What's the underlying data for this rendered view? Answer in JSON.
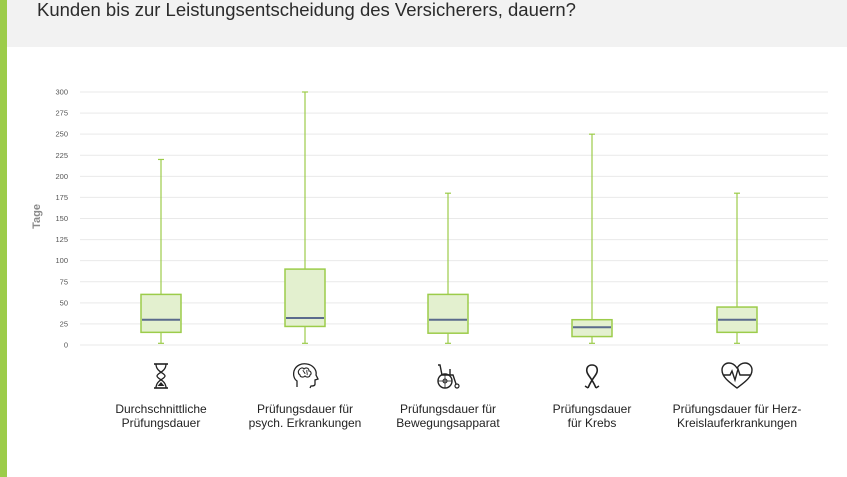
{
  "header": {
    "title": "Kunden bis zur Leistungsentscheidung des Versicherers, dauern?"
  },
  "colors": {
    "accent": "#9ccc4a",
    "box_fill": "#e3f0cf",
    "box_stroke": "#9ccc4a",
    "median": "#5b6b8c",
    "header_bg": "#f2f2f2"
  },
  "chart_data": {
    "type": "boxplot",
    "ylabel": "Tage",
    "ylim": [
      0,
      300
    ],
    "yticks": [
      "0",
      "25",
      "50",
      "75",
      "100",
      "125",
      "150",
      "175",
      "200",
      "225",
      "250",
      "275",
      "300"
    ],
    "grid": true,
    "categories": [
      "Durchschnittliche Prüfungsdauer",
      "Prüfungsdauer für psych. Erkrankungen",
      "Prüfungsdauer für Bewegungsapparat",
      "Prüfungsdauer für Krebs",
      "Prüfungsdauer für Herz-Kreislauferkrankungen"
    ],
    "labels": [
      [
        "Durchschnittliche",
        "Prüfungsdauer"
      ],
      [
        "Prüfungsdauer für",
        "psych. Erkrankungen"
      ],
      [
        "Prüfungsdauer für",
        "Bewegungsapparat"
      ],
      [
        "Prüfungsdauer",
        "für Krebs"
      ],
      [
        "Prüfungsdauer für Herz-",
        "Kreislauferkrankungen"
      ]
    ],
    "icons": [
      "hourglass-icon",
      "brain-head-icon",
      "wheelchair-icon",
      "cancer-ribbon-icon",
      "heart-pulse-icon"
    ],
    "boxes": [
      {
        "min": 2,
        "q1": 15,
        "median": 30,
        "q3": 60,
        "max": 220
      },
      {
        "min": 2,
        "q1": 22,
        "median": 32,
        "q3": 90,
        "max": 300
      },
      {
        "min": 2,
        "q1": 14,
        "median": 30,
        "q3": 60,
        "max": 180
      },
      {
        "min": 2,
        "q1": 10,
        "median": 21,
        "q3": 30,
        "max": 250
      },
      {
        "min": 2,
        "q1": 15,
        "median": 30,
        "q3": 45,
        "max": 180
      }
    ]
  }
}
